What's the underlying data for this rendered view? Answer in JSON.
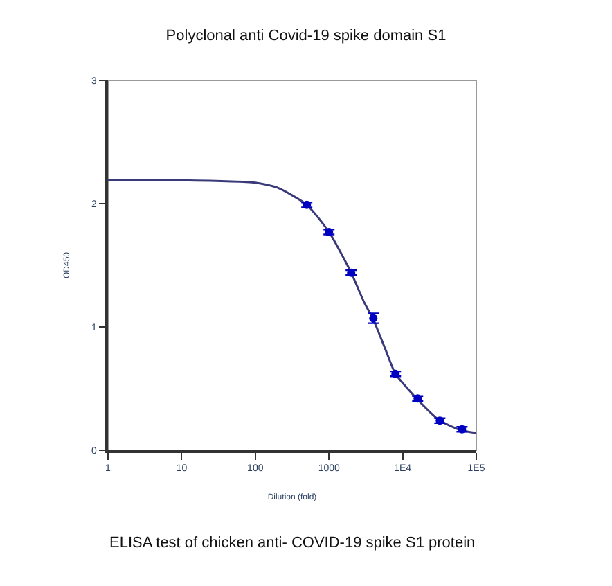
{
  "chart_data": {
    "type": "scatter",
    "title": "Polyclonal anti Covid-19 spike domain S1",
    "xlabel": "Dilution (fold)",
    "ylabel": "OD450",
    "annotations": [
      "ELISA test of chicken anti- COVID-19 spike S1 protein"
    ],
    "log": "x",
    "xlim": [
      1,
      100000
    ],
    "xticks": [
      1,
      10,
      100,
      1000,
      {
        "value": 10000,
        "label": "1E4"
      },
      {
        "value": 100000,
        "label": "1E5"
      }
    ],
    "ylim": [
      0,
      3
    ],
    "yticks": [
      0,
      1,
      2,
      3
    ],
    "grid": false,
    "series": [
      {
        "type": "line",
        "color": "#3a3a7a",
        "marker": "none",
        "line_style": "solid",
        "x": [
          1,
          10,
          100,
          200,
          500,
          1000,
          2000,
          3000,
          4000,
          6000,
          8000,
          16000,
          32000,
          64000,
          100000
        ],
        "values": [
          2.19,
          2.19,
          2.17,
          2.13,
          1.99,
          1.77,
          1.44,
          1.2,
          1.06,
          0.8,
          0.62,
          0.41,
          0.24,
          0.16,
          0.14
        ]
      },
      {
        "color": "#0000c0",
        "marker": "circle",
        "x": [
          500,
          1000,
          2000,
          4000,
          8000,
          16000,
          32000,
          64000
        ],
        "values": [
          1.99,
          1.77,
          1.44,
          1.07,
          0.62,
          0.42,
          0.24,
          0.17
        ],
        "errors": [
          0.02,
          0.02,
          0.02,
          0.04,
          0.02,
          0.02,
          0.02,
          0.02
        ]
      }
    ]
  }
}
